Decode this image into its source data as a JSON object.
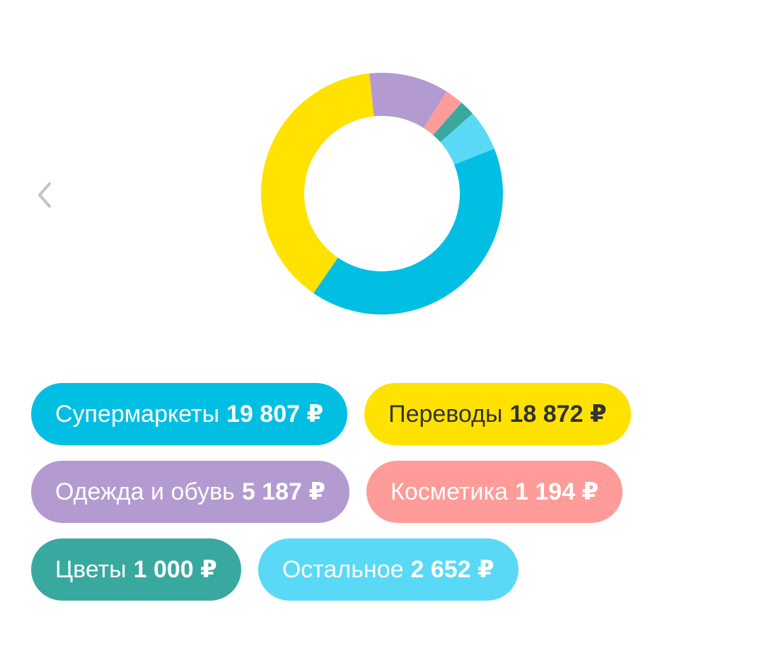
{
  "colors": {
    "supermarkets": "#00BFE3",
    "transfers": "#FFE200",
    "clothing": "#B39AD1",
    "cosmetics": "#FF9B98",
    "flowers": "#39A99F",
    "other": "#5AD9F7",
    "back_icon": "#C4C4C4",
    "text_light": "#FFFFFF",
    "text_dark": "#333333"
  },
  "nav": {
    "back_icon": "chevron-left-icon"
  },
  "chart_data": {
    "type": "pie",
    "variant": "donut",
    "categories": [
      "Супермаркеты",
      "Переводы",
      "Одежда и обувь",
      "Косметика",
      "Цветы",
      "Остальное"
    ],
    "values": [
      19807,
      18872,
      5187,
      1194,
      1000,
      2652
    ],
    "currency": "₽"
  },
  "legend": [
    {
      "key": "supermarkets",
      "name": "Супермаркеты",
      "amount": "19 807 ₽",
      "color": "#00BFE3",
      "text_color": "#FFFFFF"
    },
    {
      "key": "transfers",
      "name": "Переводы",
      "amount": "18 872 ₽",
      "color": "#FFE200",
      "text_color": "#333333"
    },
    {
      "key": "clothing",
      "name": "Одежда и обувь",
      "amount": "5 187 ₽",
      "color": "#B39AD1",
      "text_color": "#FFFFFF"
    },
    {
      "key": "cosmetics",
      "name": "Косметика",
      "amount": "1 194 ₽",
      "color": "#FF9B98",
      "text_color": "#FFFFFF"
    },
    {
      "key": "flowers",
      "name": "Цветы",
      "amount": "1 000 ₽",
      "color": "#39A99F",
      "text_color": "#FFFFFF"
    },
    {
      "key": "other",
      "name": "Остальное",
      "amount": "2 652 ₽",
      "color": "#5AD9F7",
      "text_color": "#FFFFFF"
    }
  ]
}
